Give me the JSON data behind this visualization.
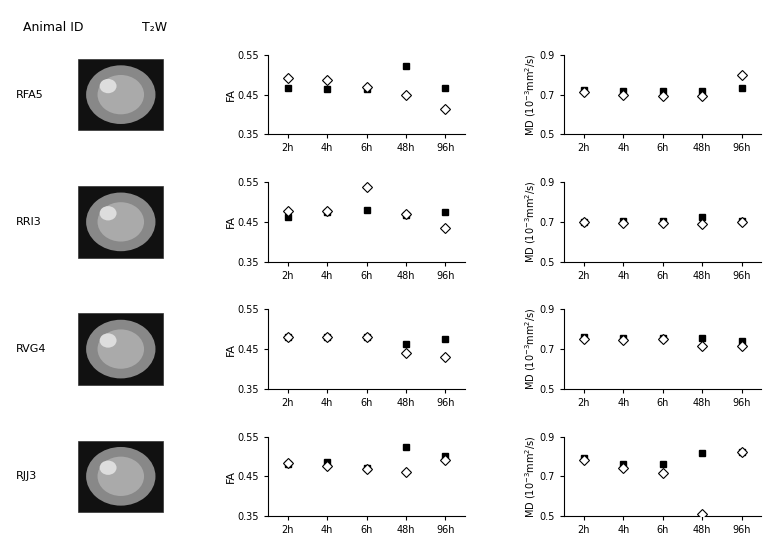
{
  "animals": [
    "RFA5",
    "RRI3",
    "RVG4",
    "RJJ3"
  ],
  "timepoints": [
    "2h",
    "4h",
    "6h",
    "48h",
    "96h"
  ],
  "FA": {
    "RFA5": {
      "filled": [
        0.466,
        0.465,
        0.464,
        0.523,
        0.467
      ],
      "open": [
        0.493,
        0.487,
        0.469,
        0.45,
        0.415
      ]
    },
    "RRI3": {
      "filled": [
        0.463,
        0.476,
        0.481,
        0.468,
        0.474
      ],
      "open": [
        0.477,
        0.477,
        0.537,
        0.47,
        0.435
      ]
    },
    "RVG4": {
      "filled": [
        0.48,
        0.48,
        0.48,
        0.462,
        0.475
      ],
      "open": [
        0.481,
        0.481,
        0.48,
        0.44,
        0.43
      ]
    },
    "RJJ3": {
      "filled": [
        0.48,
        0.485,
        0.472,
        0.523,
        0.5
      ],
      "open": [
        0.483,
        0.477,
        0.469,
        0.46,
        0.49
      ]
    }
  },
  "MD": {
    "RFA5": {
      "filled": [
        0.725,
        0.72,
        0.718,
        0.72,
        0.733
      ],
      "open": [
        0.715,
        0.698,
        0.695,
        0.692,
        0.8
      ]
    },
    "RRI3": {
      "filled": [
        0.7,
        0.703,
        0.703,
        0.722,
        0.703
      ],
      "open": [
        0.697,
        0.695,
        0.695,
        0.688,
        0.7
      ]
    },
    "RVG4": {
      "filled": [
        0.76,
        0.755,
        0.758,
        0.755,
        0.742
      ],
      "open": [
        0.753,
        0.745,
        0.75,
        0.718,
        0.718
      ]
    },
    "RJJ3": {
      "filled": [
        0.79,
        0.762,
        0.76,
        0.815,
        0.82
      ],
      "open": [
        0.78,
        0.742,
        0.718,
        0.508,
        0.82
      ]
    }
  },
  "FA_ylim": [
    0.35,
    0.55
  ],
  "FA_yticks": [
    0.35,
    0.45,
    0.55
  ],
  "MD_ylim": [
    0.5,
    0.9
  ],
  "MD_yticks": [
    0.5,
    0.7,
    0.9
  ],
  "header_animal": "Animal ID",
  "header_mri": "T₂W",
  "bg_color": "#ffffff",
  "text_color": "#000000",
  "marker_size": 5,
  "label_fontsize": 8,
  "tick_fontsize": 7,
  "animal_label_fontsize": 8
}
